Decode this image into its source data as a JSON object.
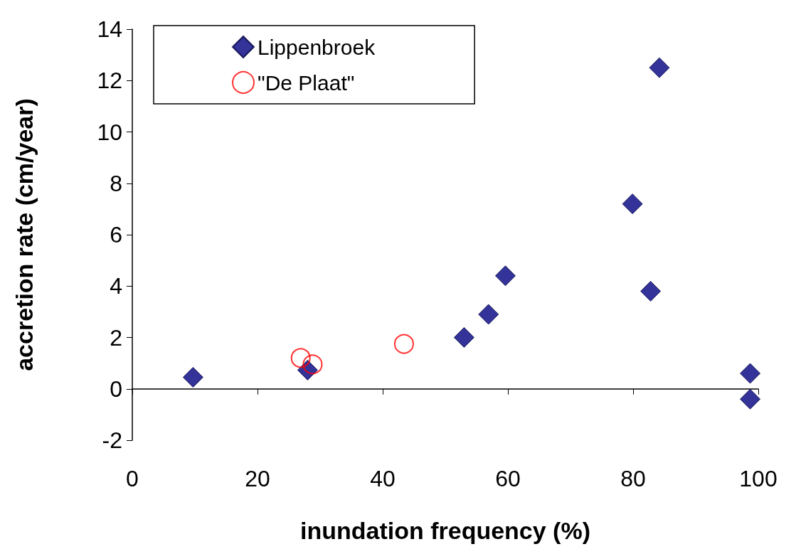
{
  "chart_data": {
    "type": "scatter",
    "xlabel": "inundation frequency (%)",
    "ylabel": "accretion rate (cm/year)",
    "xlim": [
      0,
      100
    ],
    "xticks": [
      0,
      20,
      40,
      60,
      80,
      100
    ],
    "ylim": [
      -2,
      14
    ],
    "yticks": [
      -2,
      0,
      2,
      4,
      6,
      8,
      10,
      12,
      14
    ],
    "legend": "top left",
    "series": [
      {
        "name": "Lippenbroek",
        "color": "#000080",
        "marker": "diamond",
        "x": [
          9.7,
          28,
          53,
          56.9,
          59.6,
          79.9,
          82.8,
          84.2,
          98.7,
          98.7
        ],
        "values": [
          0.45,
          0.73,
          2,
          2.9,
          4.4,
          7.2,
          3.8,
          12.5,
          0.6,
          -0.4
        ]
      },
      {
        "name": "\"De Plaat\"",
        "color": "#ff0000",
        "marker": "circle",
        "x": [
          26.9,
          28.8,
          43.4
        ],
        "values": [
          1.2,
          0.95,
          1.75
        ]
      }
    ]
  }
}
